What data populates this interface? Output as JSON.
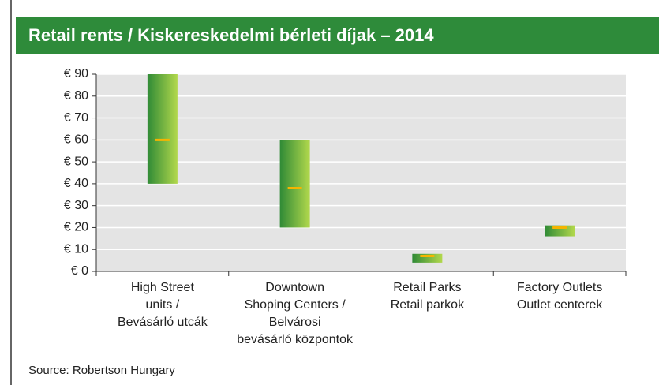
{
  "chart_data": {
    "type": "range_bar",
    "title": "Retail rents / Kiskereskedelmi bérleti díjak – 2014",
    "categories": [
      [
        "High Street",
        "units /",
        "Bevásárló utcák"
      ],
      [
        "Downtown",
        "Shoping Centers /",
        "Belvárosi",
        "bevásárló központok"
      ],
      [
        "Retail Parks",
        "Retail parkok"
      ],
      [
        "Factory Outlets",
        "Outlet centerek"
      ]
    ],
    "low": [
      40,
      20,
      4,
      16
    ],
    "high": [
      90,
      60,
      8,
      21
    ],
    "mid": [
      60,
      38,
      7,
      20
    ],
    "color_dark": "#2f8a36",
    "color_light": "#b2d84c",
    "mid_color": "#f6b400",
    "ylim": [
      0,
      90
    ],
    "yticks": [
      {
        "value": 0,
        "label": "€ 0"
      },
      {
        "value": 10,
        "label": "€ 10"
      },
      {
        "value": 20,
        "label": "€ 20"
      },
      {
        "value": 30,
        "label": "€ 30"
      },
      {
        "value": 40,
        "label": "€ 40"
      },
      {
        "value": 50,
        "label": "€ 50"
      },
      {
        "value": 60,
        "label": "€ 60"
      },
      {
        "value": 70,
        "label": "€ 70"
      },
      {
        "value": 80,
        "label": "€ 80"
      },
      {
        "value": 90,
        "label": "€ 90"
      }
    ],
    "grid": true,
    "source": "Source: Robertson Hungary"
  }
}
